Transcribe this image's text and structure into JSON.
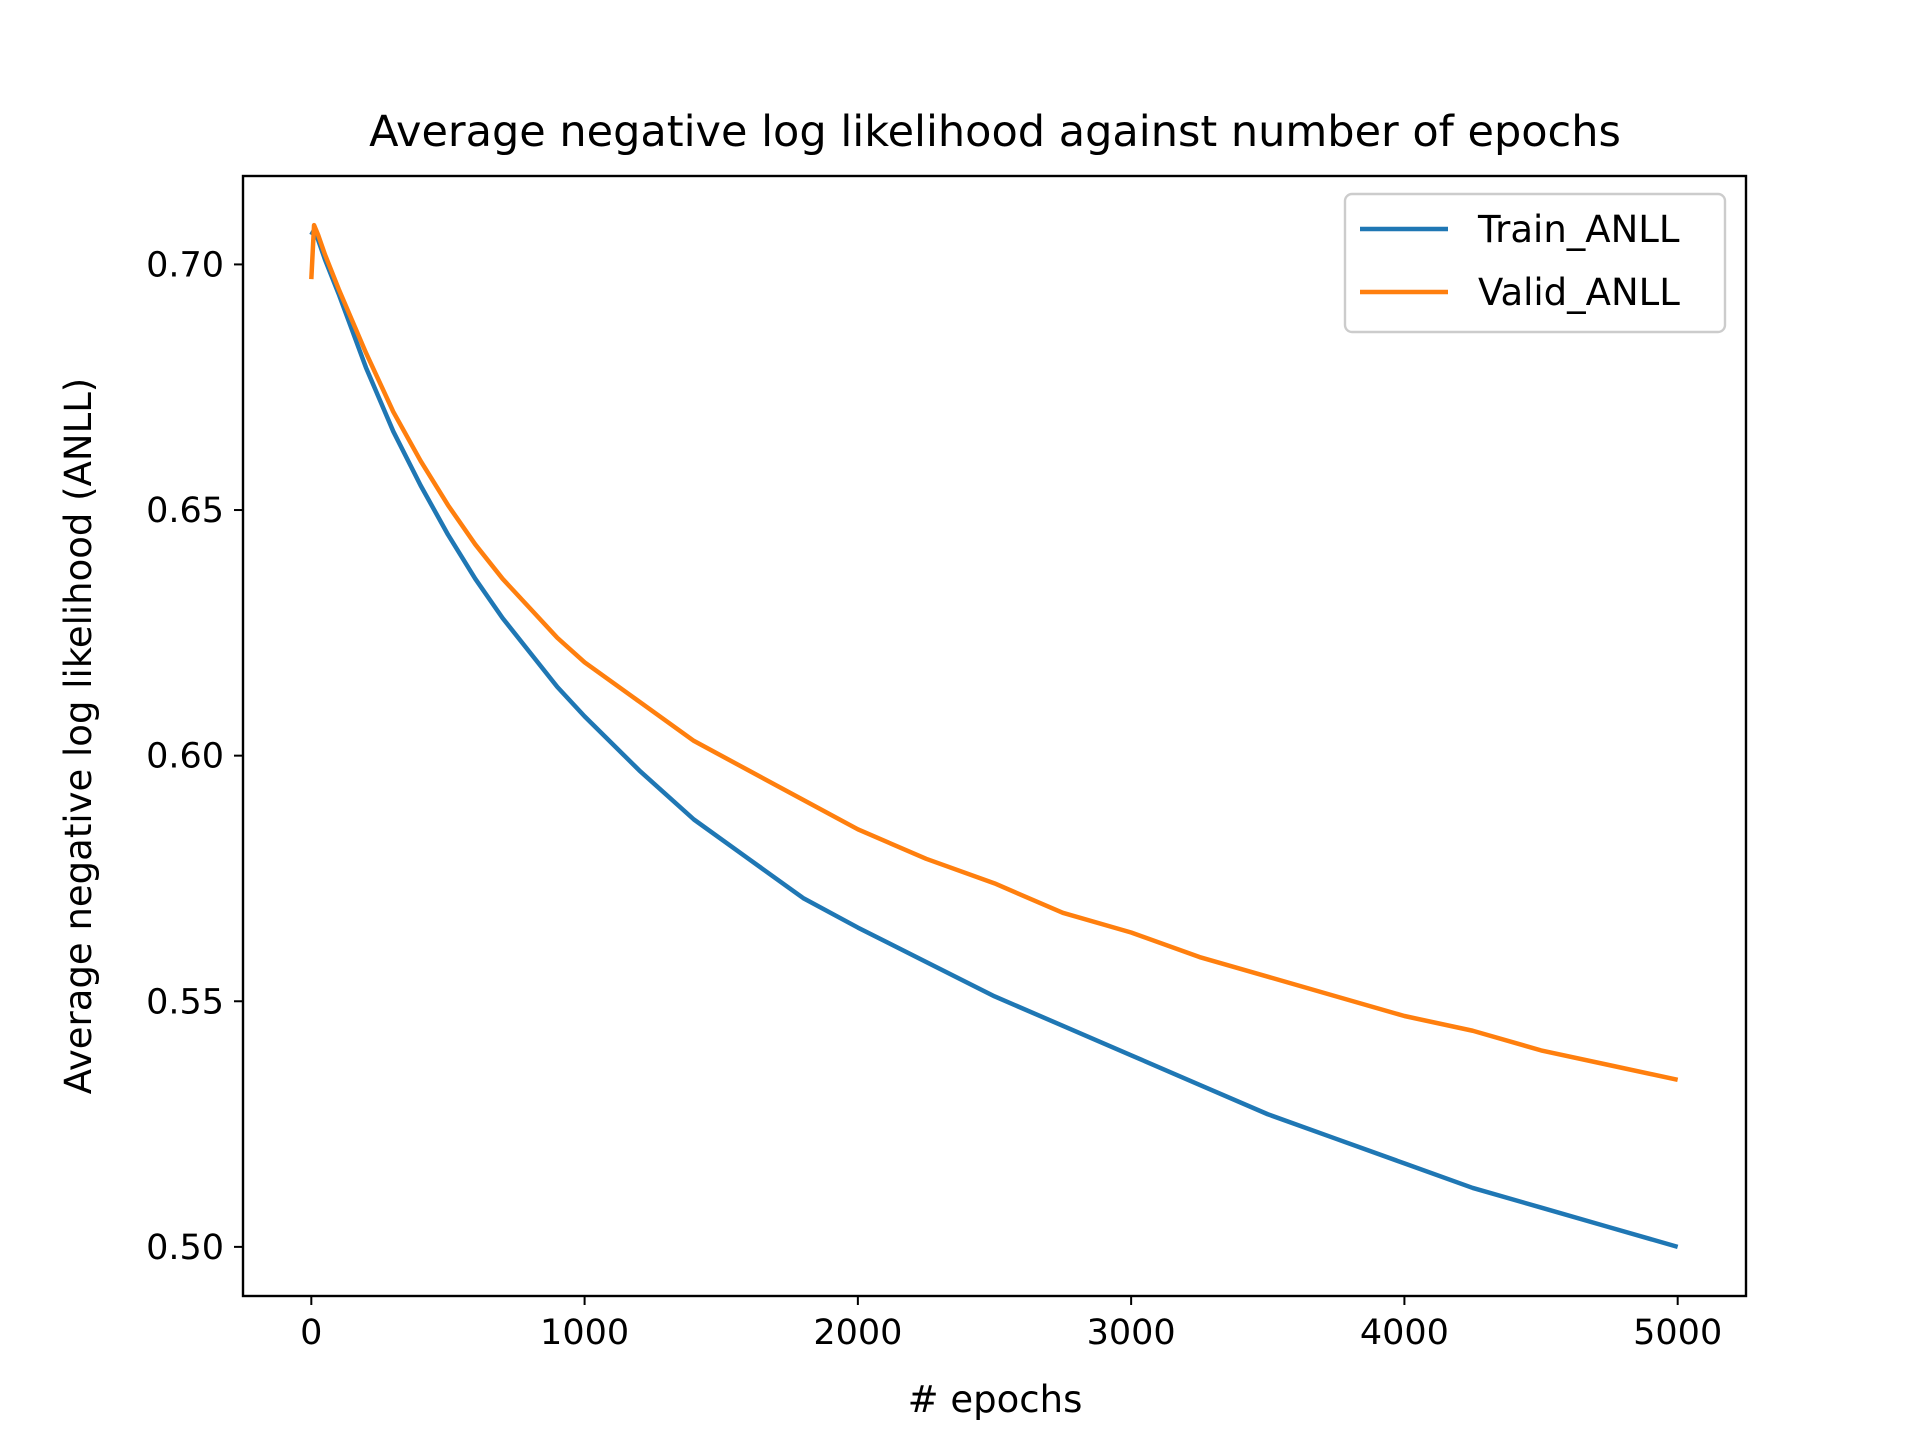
{
  "chart_data": {
    "type": "line",
    "title": "Average negative log likelihood against number of epochs",
    "xlabel": "# epochs",
    "ylabel": "Average negative log likelihood (ANLL)",
    "xlim": [
      -250,
      5250
    ],
    "ylim": [
      0.49,
      0.718
    ],
    "x_ticks": [
      0,
      1000,
      2000,
      3000,
      4000,
      5000
    ],
    "x_tick_labels": [
      "0",
      "1000",
      "2000",
      "3000",
      "4000",
      "5000"
    ],
    "y_ticks": [
      0.5,
      0.55,
      0.6,
      0.65,
      0.7
    ],
    "y_tick_labels": [
      "0.50",
      "0.55",
      "0.60",
      "0.65",
      "0.70"
    ],
    "grid": false,
    "legend_position": "top-right",
    "x": [
      0,
      10,
      25,
      50,
      100,
      200,
      300,
      400,
      500,
      600,
      700,
      800,
      900,
      1000,
      1200,
      1400,
      1600,
      1800,
      2000,
      2250,
      2500,
      2750,
      3000,
      3250,
      3500,
      3750,
      4000,
      4250,
      4500,
      4750,
      5000
    ],
    "series": [
      {
        "name": "Train_ANLL",
        "color": "#1f77b4",
        "values": [
          0.706,
          0.707,
          0.705,
          0.701,
          0.694,
          0.679,
          0.666,
          0.655,
          0.645,
          0.636,
          0.628,
          0.621,
          0.614,
          0.608,
          0.597,
          0.587,
          0.579,
          0.571,
          0.565,
          0.558,
          0.551,
          0.545,
          0.539,
          0.533,
          0.527,
          0.522,
          0.517,
          0.512,
          0.508,
          0.504,
          0.5
        ]
      },
      {
        "name": "Valid_ANLL",
        "color": "#ff7f0e",
        "values": [
          0.697,
          0.708,
          0.706,
          0.702,
          0.695,
          0.682,
          0.67,
          0.66,
          0.651,
          0.643,
          0.636,
          0.63,
          0.624,
          0.619,
          0.611,
          0.603,
          0.597,
          0.591,
          0.585,
          0.579,
          0.574,
          0.568,
          0.564,
          0.559,
          0.555,
          0.551,
          0.547,
          0.544,
          0.54,
          0.537,
          0.534
        ]
      }
    ]
  }
}
